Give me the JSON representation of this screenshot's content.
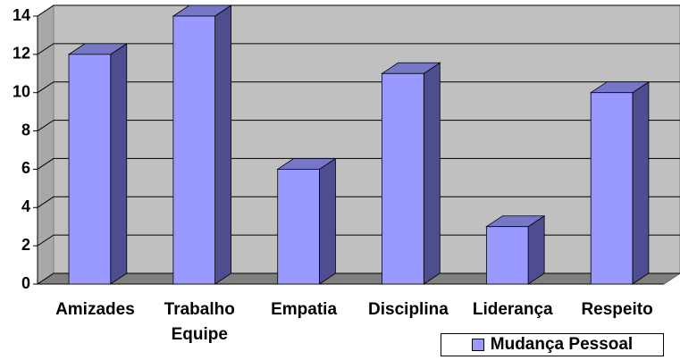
{
  "chart_data": {
    "type": "bar3d",
    "categories": [
      "Amizades",
      "Trabalho Equipe",
      "Empatia",
      "Disciplina",
      "Liderança",
      "Respeito"
    ],
    "series": [
      {
        "name": "Mudança Pessoal",
        "color": "#9999ff",
        "values": [
          12,
          14,
          6,
          11,
          3,
          10
        ]
      }
    ],
    "ylim": [
      0,
      14
    ],
    "yticks": [
      0,
      2,
      4,
      6,
      8,
      10,
      12,
      14
    ],
    "grid": true,
    "legend": "bottom-right"
  }
}
